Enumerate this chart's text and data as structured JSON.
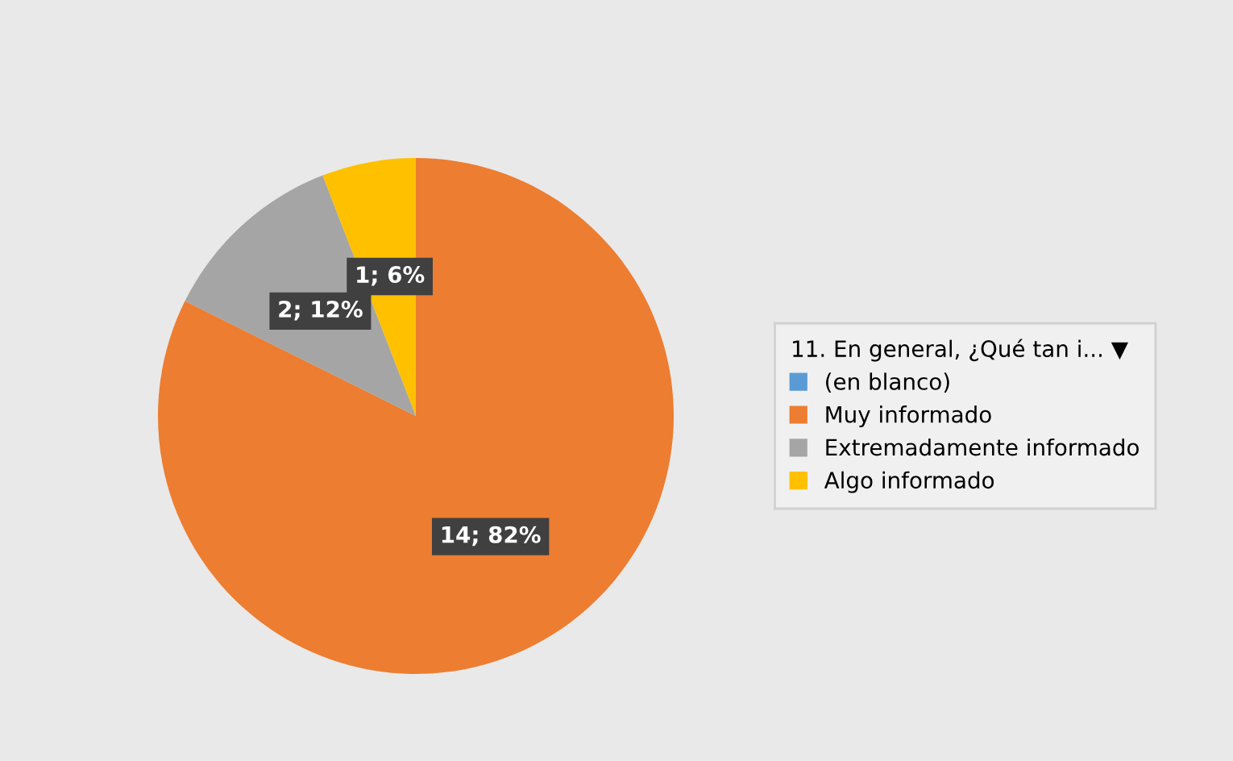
{
  "chart_data": {
    "type": "pie",
    "legend_title": "11. En general, ¿Qué tan i... ▼",
    "categories": [
      "(en blanco)",
      "Muy informado",
      "Extremadamente informado",
      "Algo informado"
    ],
    "values": [
      0,
      14,
      2,
      1
    ],
    "colors": [
      "#5b9bd5",
      "#ed7d31",
      "#a5a5a5",
      "#ffc000"
    ],
    "value_labels": [
      null,
      "14; 82%",
      "2; 12%",
      "1; 6%"
    ],
    "legend": "right"
  }
}
